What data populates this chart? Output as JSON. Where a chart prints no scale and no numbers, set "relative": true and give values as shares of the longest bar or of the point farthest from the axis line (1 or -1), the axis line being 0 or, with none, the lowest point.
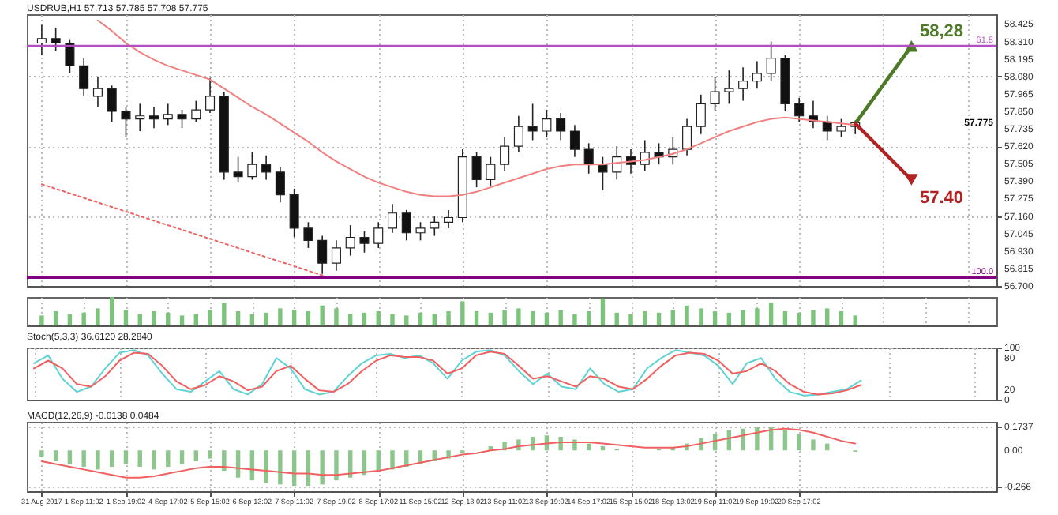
{
  "chart_data": [
    {
      "type": "candlestick",
      "title": "USDRUB,H1 57.713 57.785 57.708 57.775",
      "grid": true,
      "tick_labels": "y",
      "categories": [
        null,
        null,
        null,
        null,
        null,
        null,
        null,
        null,
        null,
        null,
        null,
        null,
        null,
        null,
        null,
        null,
        null,
        null,
        null,
        null,
        null,
        null,
        null,
        null,
        null,
        null,
        null,
        null,
        null,
        null,
        null,
        null,
        null,
        null,
        null,
        null,
        null,
        null,
        null,
        null,
        null,
        null,
        null,
        null,
        null,
        null,
        null,
        null,
        null,
        null,
        null,
        null,
        null,
        null,
        null,
        null,
        null,
        null,
        null,
        null,
        null,
        null,
        null,
        null,
        null,
        null,
        null,
        null
      ],
      "ohlc": [
        [
          58.3,
          58.42,
          58.22,
          58.33
        ],
        [
          58.33,
          58.4,
          58.25,
          58.3
        ],
        [
          58.3,
          58.32,
          58.1,
          58.15
        ],
        [
          58.15,
          58.2,
          57.95,
          58.0
        ],
        [
          57.95,
          58.08,
          57.88,
          58.0
        ],
        [
          58.0,
          58.02,
          57.78,
          57.85
        ],
        [
          57.85,
          57.88,
          57.68,
          57.8
        ],
        [
          57.8,
          57.9,
          57.72,
          57.82
        ],
        [
          57.82,
          57.88,
          57.74,
          57.8
        ],
        [
          57.8,
          57.9,
          57.76,
          57.83
        ],
        [
          57.83,
          57.86,
          57.74,
          57.8
        ],
        [
          57.8,
          57.92,
          57.78,
          57.86
        ],
        [
          57.86,
          58.07,
          57.84,
          57.95
        ],
        [
          57.95,
          57.98,
          57.4,
          57.45
        ],
        [
          57.45,
          57.55,
          57.38,
          57.42
        ],
        [
          57.42,
          57.58,
          57.4,
          57.5
        ],
        [
          57.5,
          57.56,
          57.4,
          57.45
        ],
        [
          57.45,
          57.48,
          57.25,
          57.3
        ],
        [
          57.3,
          57.34,
          57.02,
          57.08
        ],
        [
          57.08,
          57.12,
          56.95,
          57.0
        ],
        [
          57.0,
          57.03,
          56.78,
          56.85
        ],
        [
          56.85,
          57.0,
          56.8,
          56.95
        ],
        [
          56.95,
          57.1,
          56.9,
          57.02
        ],
        [
          57.02,
          57.06,
          56.92,
          56.98
        ],
        [
          56.98,
          57.12,
          56.95,
          57.08
        ],
        [
          57.08,
          57.24,
          57.05,
          57.18
        ],
        [
          57.18,
          57.2,
          57.0,
          57.05
        ],
        [
          57.05,
          57.12,
          57.0,
          57.08
        ],
        [
          57.08,
          57.16,
          57.03,
          57.12
        ],
        [
          57.12,
          57.2,
          57.08,
          57.15
        ],
        [
          57.15,
          57.6,
          57.12,
          57.55
        ],
        [
          57.55,
          57.58,
          57.35,
          57.4
        ],
        [
          57.4,
          57.55,
          57.36,
          57.5
        ],
        [
          57.5,
          57.68,
          57.46,
          57.62
        ],
        [
          57.62,
          57.82,
          57.58,
          57.75
        ],
        [
          57.75,
          57.9,
          57.66,
          57.72
        ],
        [
          57.72,
          57.86,
          57.68,
          57.8
        ],
        [
          57.8,
          57.84,
          57.66,
          57.72
        ],
        [
          57.72,
          57.76,
          57.55,
          57.6
        ],
        [
          57.6,
          57.64,
          57.44,
          57.5
        ],
        [
          57.5,
          57.55,
          57.33,
          57.45
        ],
        [
          57.45,
          57.62,
          57.4,
          57.55
        ],
        [
          57.55,
          57.6,
          57.44,
          57.5
        ],
        [
          57.5,
          57.66,
          57.46,
          57.58
        ],
        [
          57.58,
          57.64,
          57.5,
          57.55
        ],
        [
          57.55,
          57.68,
          57.5,
          57.6
        ],
        [
          57.6,
          57.8,
          57.56,
          57.75
        ],
        [
          57.75,
          57.96,
          57.7,
          57.9
        ],
        [
          57.9,
          58.08,
          57.85,
          57.98
        ],
        [
          57.98,
          58.12,
          57.9,
          58.0
        ],
        [
          58.0,
          58.14,
          57.92,
          58.05
        ],
        [
          58.05,
          58.18,
          58.0,
          58.1
        ],
        [
          58.1,
          58.31,
          58.05,
          58.2
        ],
        [
          58.2,
          58.22,
          57.85,
          57.9
        ],
        [
          57.9,
          57.94,
          57.78,
          57.82
        ],
        [
          57.82,
          57.92,
          57.74,
          57.78
        ],
        [
          57.78,
          57.82,
          57.66,
          57.72
        ],
        [
          57.72,
          57.8,
          57.68,
          57.75
        ],
        [
          57.75,
          57.79,
          57.7,
          57.775
        ],
        null,
        null,
        null,
        null,
        null,
        null,
        null,
        null,
        null
      ],
      "series": [
        {
          "type": "line",
          "color": "#f08080",
          "values": [
            null,
            null,
            null,
            null,
            58.45,
            58.38,
            58.3,
            58.24,
            58.19,
            58.15,
            58.12,
            58.09,
            58.06,
            58.0,
            57.94,
            57.88,
            57.83,
            57.77,
            57.71,
            57.65,
            57.58,
            57.52,
            57.47,
            57.42,
            57.38,
            57.35,
            57.32,
            57.3,
            57.29,
            57.29,
            57.3,
            57.32,
            57.35,
            57.38,
            57.41,
            57.44,
            57.47,
            57.49,
            57.5,
            57.5,
            57.5,
            57.51,
            57.52,
            57.53,
            57.55,
            57.57,
            57.6,
            57.64,
            57.68,
            57.72,
            57.75,
            57.78,
            57.8,
            57.81,
            57.8,
            57.79,
            57.78,
            57.77,
            57.76,
            null,
            null,
            null,
            null,
            null,
            null,
            null,
            null,
            null
          ]
        },
        {
          "type": "line",
          "color": "#f06060",
          "line_style": "dotted",
          "values": [
            57.37,
            null,
            null,
            null,
            null,
            null,
            null,
            null,
            null,
            null,
            null,
            null,
            null,
            null,
            null,
            null,
            null,
            null,
            null,
            null,
            56.77,
            null,
            null,
            null,
            null,
            null,
            null,
            null,
            null,
            null,
            null,
            null,
            null,
            null,
            null,
            null,
            null,
            null,
            null,
            null,
            null,
            null,
            null,
            null,
            null,
            null,
            null,
            null,
            null,
            null,
            null,
            null,
            null,
            null,
            null,
            null,
            null,
            null,
            null,
            null,
            null,
            null,
            null,
            null,
            null,
            null,
            null,
            null
          ]
        },
        {
          "type": "line",
          "color": "#4e7a27",
          "marker": "triangle",
          "values": [
            null,
            null,
            null,
            null,
            null,
            null,
            null,
            null,
            null,
            null,
            null,
            null,
            null,
            null,
            null,
            null,
            null,
            null,
            null,
            null,
            null,
            null,
            null,
            null,
            null,
            null,
            null,
            null,
            null,
            null,
            null,
            null,
            null,
            null,
            null,
            null,
            null,
            null,
            null,
            null,
            null,
            null,
            null,
            null,
            null,
            null,
            null,
            null,
            null,
            null,
            null,
            null,
            null,
            null,
            null,
            null,
            null,
            null,
            57.77,
            null,
            null,
            null,
            58.28,
            null,
            null,
            null,
            null,
            null
          ]
        },
        {
          "type": "line",
          "color": "#b22222",
          "marker": "triangle",
          "values": [
            null,
            null,
            null,
            null,
            null,
            null,
            null,
            null,
            null,
            null,
            null,
            null,
            null,
            null,
            null,
            null,
            null,
            null,
            null,
            null,
            null,
            null,
            null,
            null,
            null,
            null,
            null,
            null,
            null,
            null,
            null,
            null,
            null,
            null,
            null,
            null,
            null,
            null,
            null,
            null,
            null,
            null,
            null,
            null,
            null,
            null,
            null,
            null,
            null,
            null,
            null,
            null,
            null,
            null,
            null,
            null,
            null,
            null,
            57.77,
            null,
            null,
            null,
            57.4,
            null,
            null,
            null,
            null,
            null
          ]
        }
      ],
      "ylim": [
        56.7,
        58.49
      ],
      "yticks": [
        58.425,
        {
          "value": 58.31,
          "label": "58.310"
        },
        58.195,
        {
          "value": 58.08,
          "label": "58.080"
        },
        57.965,
        {
          "value": 57.85,
          "label": "57.850"
        },
        57.735,
        {
          "value": 57.62,
          "label": "57.620"
        },
        57.505,
        {
          "value": 57.39,
          "label": "57.390"
        },
        57.275,
        {
          "value": 57.16,
          "label": "57.160"
        },
        57.045,
        {
          "value": 56.93,
          "label": "56.930"
        },
        56.815,
        {
          "value": 56.7,
          "label": "56.700"
        }
      ],
      "ref_lines": [
        {
          "axis": "y",
          "value": 58.28,
          "color": "#b050c0"
        },
        {
          "axis": "y",
          "value": 56.755,
          "color": "#800080"
        }
      ],
      "annotations": [
        "58,28",
        "57.40",
        {
          "text": "61.8",
          "y": 58.28
        },
        {
          "text": "100.0",
          "y": 56.755
        },
        "57.775"
      ]
    },
    {
      "type": "bar",
      "relative": true,
      "grid": true,
      "color": "#7cc47c",
      "categories": [
        null,
        null,
        null,
        null,
        null,
        null,
        null,
        null,
        null,
        null,
        null,
        null,
        null,
        null,
        null,
        null,
        null,
        null,
        null,
        null,
        null,
        null,
        null,
        null,
        null,
        null,
        null,
        null,
        null,
        null,
        null,
        null,
        null,
        null,
        null,
        null,
        null,
        null,
        null,
        null,
        null,
        null,
        null,
        null,
        null,
        null,
        null,
        null,
        null,
        null,
        null,
        null,
        null,
        null,
        null,
        null,
        null,
        null,
        null,
        null,
        null,
        null,
        null,
        null,
        null,
        null,
        null,
        null
      ],
      "values": [
        0.35,
        0.5,
        0.4,
        0.45,
        0.6,
        1.0,
        0.55,
        0.4,
        0.5,
        0.45,
        0.35,
        0.4,
        0.55,
        0.8,
        0.5,
        0.4,
        0.45,
        0.6,
        0.55,
        0.5,
        0.7,
        0.6,
        0.4,
        0.45,
        0.5,
        0.4,
        0.35,
        0.45,
        0.4,
        0.5,
        0.85,
        0.5,
        0.45,
        0.55,
        0.6,
        0.5,
        0.45,
        0.55,
        0.4,
        0.5,
        0.95,
        0.45,
        0.4,
        0.5,
        0.45,
        0.55,
        0.7,
        0.6,
        0.5,
        0.45,
        0.55,
        0.6,
        0.8,
        0.5,
        0.45,
        0.55,
        0.6,
        0.5,
        0.35,
        null,
        null,
        null,
        null,
        null,
        null,
        null,
        null,
        null
      ]
    },
    {
      "type": "line",
      "title": "Stoch(5,3,3) 36.6120 28.2840",
      "grid": true,
      "tick_labels": "y",
      "categories": [
        null,
        null,
        null,
        null,
        null,
        null,
        null,
        null,
        null,
        null,
        null,
        null,
        null,
        null,
        null,
        null,
        null,
        null,
        null,
        null,
        null,
        null,
        null,
        null,
        null,
        null,
        null,
        null,
        null,
        null,
        null,
        null,
        null,
        null,
        null,
        null,
        null,
        null,
        null,
        null,
        null,
        null,
        null,
        null,
        null,
        null,
        null,
        null,
        null,
        null,
        null,
        null,
        null,
        null,
        null,
        null,
        null,
        null,
        null,
        null,
        null,
        null,
        null,
        null,
        null,
        null,
        null,
        null
      ],
      "series": [
        {
          "color": "#5fd3d3",
          "values": [
            70,
            85,
            40,
            15,
            25,
            60,
            90,
            95,
            85,
            50,
            20,
            15,
            35,
            55,
            20,
            10,
            30,
            80,
            60,
            20,
            10,
            15,
            45,
            70,
            85,
            88,
            80,
            85,
            70,
            40,
            75,
            92,
            95,
            85,
            55,
            30,
            50,
            25,
            20,
            60,
            30,
            15,
            20,
            60,
            80,
            95,
            90,
            85,
            65,
            30,
            70,
            80,
            40,
            15,
            8,
            10,
            15,
            20,
            37,
            null,
            null,
            null,
            null,
            null,
            null,
            null,
            null,
            null
          ]
        },
        {
          "color": "#f06060",
          "values": [
            60,
            75,
            60,
            30,
            25,
            45,
            75,
            90,
            88,
            65,
            35,
            20,
            28,
            45,
            35,
            18,
            25,
            55,
            65,
            40,
            18,
            15,
            30,
            55,
            75,
            85,
            82,
            82,
            75,
            50,
            60,
            85,
            92,
            88,
            65,
            40,
            45,
            35,
            25,
            45,
            40,
            25,
            20,
            40,
            65,
            85,
            90,
            88,
            75,
            50,
            55,
            70,
            55,
            30,
            15,
            10,
            12,
            18,
            28,
            null,
            null,
            null,
            null,
            null,
            null,
            null,
            null,
            null
          ]
        }
      ],
      "ylim": [
        0,
        100
      ],
      "yticks": [
        100,
        80,
        20,
        0
      ]
    },
    {
      "type": "bar",
      "title": "MACD(12,26,9) -0.0138 0.0484",
      "grid": true,
      "categories": [
        "31 Aug 2017",
        null,
        null,
        "1 Sep 11:02",
        null,
        null,
        "1 Sep 19:02",
        null,
        null,
        "4 Sep 17:02",
        null,
        null,
        "5 Sep 15:02",
        null,
        null,
        "6 Sep 13:02",
        null,
        null,
        "7 Sep 11:02",
        null,
        null,
        "7 Sep 19:02",
        null,
        null,
        "8 Sep 17:02",
        null,
        null,
        "11 Sep 15:02",
        null,
        null,
        "12 Sep 13:02",
        null,
        null,
        "13 Sep 11:02",
        null,
        null,
        "13 Sep 19:02",
        null,
        null,
        "14 Sep 17:02",
        null,
        null,
        "15 Sep 15:02",
        null,
        null,
        "18 Sep 13:02",
        null,
        null,
        "19 Sep 11:02",
        null,
        null,
        "19 Sep 19:02",
        null,
        null,
        "20 Sep 17:02",
        null,
        null,
        null,
        null,
        null,
        null,
        null,
        null,
        null,
        null,
        null,
        null,
        null
      ],
      "series": [
        {
          "color": "#8cc68c",
          "values": [
            -0.05,
            -0.08,
            -0.1,
            -0.12,
            -0.14,
            -0.12,
            -0.1,
            -0.12,
            -0.14,
            -0.12,
            -0.1,
            -0.08,
            -0.06,
            -0.15,
            -0.2,
            -0.22,
            -0.24,
            -0.25,
            -0.26,
            -0.26,
            -0.25,
            -0.22,
            -0.2,
            -0.18,
            -0.16,
            -0.14,
            -0.12,
            -0.1,
            -0.08,
            -0.06,
            -0.02,
            0.0,
            0.03,
            0.06,
            0.08,
            0.1,
            0.11,
            0.1,
            0.08,
            0.05,
            0.03,
            0.01,
            0.0,
            0.0,
            0.01,
            0.02,
            0.05,
            0.09,
            0.12,
            0.15,
            0.16,
            0.17,
            0.17,
            0.15,
            0.12,
            0.08,
            0.05,
            0.0,
            -0.01,
            null,
            null,
            null,
            null,
            null,
            null,
            null,
            null,
            null
          ]
        },
        {
          "type": "line",
          "color": "#f06060",
          "values": [
            -0.08,
            -0.1,
            -0.12,
            -0.14,
            -0.16,
            -0.18,
            -0.2,
            -0.2,
            -0.19,
            -0.17,
            -0.15,
            -0.13,
            -0.12,
            -0.12,
            -0.13,
            -0.14,
            -0.15,
            -0.16,
            -0.17,
            -0.17,
            -0.18,
            -0.18,
            -0.17,
            -0.16,
            -0.15,
            -0.13,
            -0.11,
            -0.09,
            -0.07,
            -0.05,
            -0.03,
            -0.02,
            0.0,
            0.01,
            0.03,
            0.04,
            0.05,
            0.06,
            0.06,
            0.06,
            0.05,
            0.04,
            0.03,
            0.02,
            0.02,
            0.02,
            0.03,
            0.05,
            0.07,
            0.09,
            0.11,
            0.13,
            0.15,
            0.16,
            0.15,
            0.13,
            0.1,
            0.07,
            0.05,
            null,
            null,
            null,
            null,
            null,
            null,
            null,
            null,
            null
          ]
        }
      ],
      "ylim": [
        -0.3,
        0.21
      ],
      "yticks": [
        0.1737,
        {
          "value": 0,
          "label": "0.00"
        },
        -0.266
      ]
    }
  ]
}
